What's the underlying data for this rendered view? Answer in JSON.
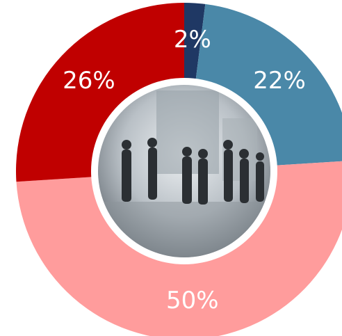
{
  "chart_data": {
    "type": "pie",
    "donut": true,
    "values": [
      2,
      22,
      50,
      26
    ],
    "value_labels": [
      "2%",
      "22%",
      "50%",
      "26%"
    ],
    "colors": [
      "#1f3864",
      "#4a88a8",
      "#ff9c9c",
      "#c00000"
    ]
  }
}
